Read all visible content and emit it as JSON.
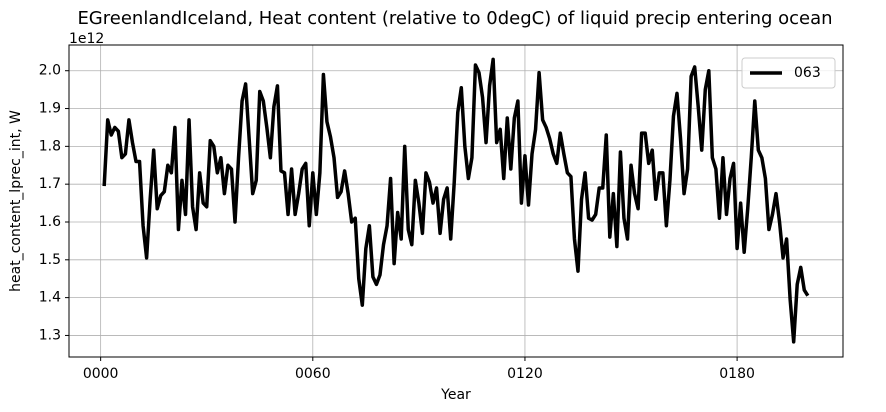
{
  "chart_data": {
    "type": "line",
    "title": "EGreenlandIceland, Heat content (relative to 0degC) of liquid precip entering ocean",
    "xlabel": "Year",
    "ylabel": "heat_content_lprec_int, W",
    "y_offset_label": "1e12",
    "x": [
      1,
      2,
      3,
      4,
      5,
      6,
      7,
      8,
      9,
      10,
      11,
      12,
      13,
      14,
      15,
      16,
      17,
      18,
      19,
      20,
      21,
      22,
      23,
      24,
      25,
      26,
      27,
      28,
      29,
      30,
      31,
      32,
      33,
      34,
      35,
      36,
      37,
      38,
      39,
      40,
      41,
      42,
      43,
      44,
      45,
      46,
      47,
      48,
      49,
      50,
      51,
      52,
      53,
      54,
      55,
      56,
      57,
      58,
      59,
      60,
      61,
      62,
      63,
      64,
      65,
      66,
      67,
      68,
      69,
      70,
      71,
      72,
      73,
      74,
      75,
      76,
      77,
      78,
      79,
      80,
      81,
      82,
      83,
      84,
      85,
      86,
      87,
      88,
      89,
      90,
      91,
      92,
      93,
      94,
      95,
      96,
      97,
      98,
      99,
      100,
      101,
      102,
      103,
      104,
      105,
      106,
      107,
      108,
      109,
      110,
      111,
      112,
      113,
      114,
      115,
      116,
      117,
      118,
      119,
      120,
      121,
      122,
      123,
      124,
      125,
      126,
      127,
      128,
      129,
      130,
      131,
      132,
      133,
      134,
      135,
      136,
      137,
      138,
      139,
      140,
      141,
      142,
      143,
      144,
      145,
      146,
      147,
      148,
      149,
      150,
      151,
      152,
      153,
      154,
      155,
      156,
      157,
      158,
      159,
      160,
      161,
      162,
      163,
      164,
      165,
      166,
      167,
      168,
      169,
      170,
      171,
      172,
      173,
      174,
      175,
      176,
      177,
      178,
      179,
      180,
      181,
      182,
      183,
      184,
      185,
      186,
      187,
      188,
      189,
      190,
      191,
      192,
      193,
      194,
      195,
      196,
      197,
      198,
      199,
      200
    ],
    "series": [
      {
        "name": "063",
        "color": "#000000",
        "values": [
          1.695,
          1.87,
          1.83,
          1.85,
          1.84,
          1.77,
          1.78,
          1.87,
          1.81,
          1.76,
          1.76,
          1.59,
          1.505,
          1.66,
          1.79,
          1.635,
          1.67,
          1.68,
          1.75,
          1.73,
          1.85,
          1.58,
          1.71,
          1.62,
          1.87,
          1.64,
          1.58,
          1.73,
          1.65,
          1.64,
          1.815,
          1.8,
          1.73,
          1.77,
          1.675,
          1.75,
          1.74,
          1.6,
          1.77,
          1.92,
          1.965,
          1.82,
          1.675,
          1.71,
          1.945,
          1.92,
          1.85,
          1.77,
          1.905,
          1.96,
          1.735,
          1.73,
          1.62,
          1.74,
          1.62,
          1.675,
          1.74,
          1.755,
          1.59,
          1.73,
          1.62,
          1.73,
          1.99,
          1.865,
          1.825,
          1.77,
          1.665,
          1.68,
          1.735,
          1.675,
          1.6,
          1.61,
          1.45,
          1.38,
          1.53,
          1.59,
          1.455,
          1.435,
          1.46,
          1.54,
          1.59,
          1.715,
          1.49,
          1.625,
          1.555,
          1.8,
          1.58,
          1.54,
          1.71,
          1.65,
          1.57,
          1.73,
          1.705,
          1.65,
          1.69,
          1.57,
          1.66,
          1.69,
          1.555,
          1.705,
          1.89,
          1.955,
          1.8,
          1.715,
          1.77,
          2.015,
          1.995,
          1.93,
          1.81,
          1.96,
          2.03,
          1.81,
          1.845,
          1.715,
          1.875,
          1.74,
          1.875,
          1.92,
          1.65,
          1.775,
          1.645,
          1.78,
          1.845,
          1.995,
          1.87,
          1.85,
          1.82,
          1.78,
          1.755,
          1.835,
          1.78,
          1.73,
          1.72,
          1.555,
          1.47,
          1.66,
          1.73,
          1.61,
          1.605,
          1.62,
          1.69,
          1.69,
          1.83,
          1.56,
          1.675,
          1.535,
          1.785,
          1.61,
          1.555,
          1.75,
          1.675,
          1.635,
          1.835,
          1.835,
          1.755,
          1.79,
          1.66,
          1.73,
          1.73,
          1.59,
          1.71,
          1.88,
          1.94,
          1.82,
          1.675,
          1.74,
          1.985,
          2.01,
          1.905,
          1.79,
          1.95,
          2.0,
          1.77,
          1.74,
          1.61,
          1.77,
          1.62,
          1.715,
          1.755,
          1.53,
          1.65,
          1.52,
          1.635,
          1.77,
          1.92,
          1.79,
          1.77,
          1.715,
          1.58,
          1.62,
          1.675,
          1.6,
          1.505,
          1.555,
          1.395,
          1.283,
          1.435,
          1.48,
          1.42,
          1.405
        ]
      }
    ],
    "xlim": [
      -8.95,
      209.95
    ],
    "ylim": [
      1.243,
      2.068
    ],
    "xticks": [
      {
        "value": 0,
        "label": "0000"
      },
      {
        "value": 60,
        "label": "0060"
      },
      {
        "value": 120,
        "label": "0120"
      },
      {
        "value": 180,
        "label": "0180"
      }
    ],
    "yticks": [
      1.3,
      1.4,
      1.5,
      1.6,
      1.7,
      1.8,
      1.9,
      {
        "value": 2,
        "label": "2.0"
      }
    ],
    "grid": true,
    "legend": "upper right"
  }
}
